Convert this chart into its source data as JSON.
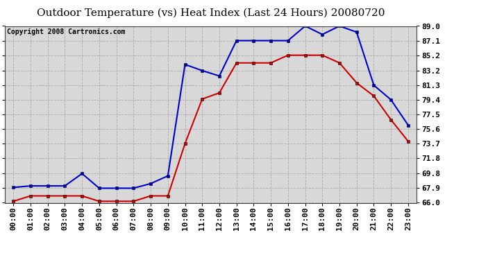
{
  "title": "Outdoor Temperature (vs) Heat Index (Last 24 Hours) 20080720",
  "copyright": "Copyright 2008 Cartronics.com",
  "x_labels": [
    "00:00",
    "01:00",
    "02:00",
    "03:00",
    "04:00",
    "05:00",
    "06:00",
    "07:00",
    "08:00",
    "09:00",
    "10:00",
    "11:00",
    "12:00",
    "13:00",
    "14:00",
    "15:00",
    "16:00",
    "17:00",
    "18:00",
    "19:00",
    "20:00",
    "21:00",
    "22:00",
    "23:00"
  ],
  "blue_data": [
    68.0,
    68.2,
    68.2,
    68.2,
    69.8,
    67.9,
    67.9,
    67.9,
    68.5,
    69.5,
    84.0,
    83.2,
    82.5,
    87.1,
    87.1,
    87.1,
    87.1,
    89.0,
    87.9,
    89.0,
    88.2,
    81.3,
    79.4,
    76.1
  ],
  "red_data": [
    66.2,
    66.9,
    66.9,
    66.9,
    66.9,
    66.2,
    66.2,
    66.2,
    66.9,
    66.9,
    73.7,
    79.5,
    80.3,
    84.2,
    84.2,
    84.2,
    85.2,
    85.2,
    85.2,
    84.2,
    81.6,
    79.9,
    76.8,
    74.0
  ],
  "y_ticks": [
    66.0,
    67.9,
    69.8,
    71.8,
    73.7,
    75.6,
    77.5,
    79.4,
    81.3,
    83.2,
    85.2,
    87.1,
    89.0
  ],
  "y_min": 66.0,
  "y_max": 89.0,
  "blue_color": "#0000cc",
  "red_color": "#cc0000",
  "bg_color": "#ffffff",
  "plot_bg_color": "#d8d8d8",
  "grid_color": "#aaaaaa",
  "title_fontsize": 11,
  "copyright_fontsize": 7,
  "tick_fontsize": 8
}
